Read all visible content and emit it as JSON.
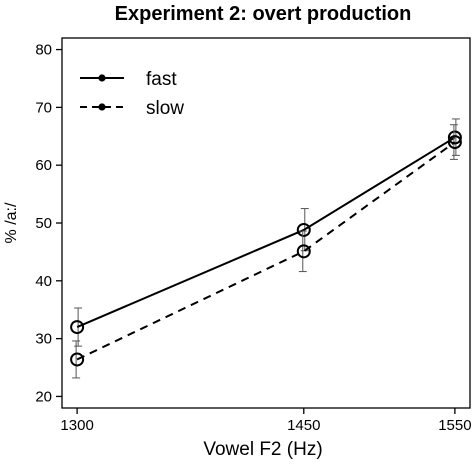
{
  "chart_data": {
    "type": "line",
    "title": "Experiment 2: overt production",
    "xlabel": "Vowel F2 (Hz)",
    "ylabel": "% /a:/",
    "x": [
      1300,
      1450,
      1550
    ],
    "x_ticks": [
      "1300",
      "1450",
      "1550"
    ],
    "xlim": [
      1290,
      1560
    ],
    "ylim": [
      18,
      82
    ],
    "y_ticks": [
      "20",
      "30",
      "40",
      "50",
      "60",
      "70",
      "80"
    ],
    "legend_position": "top-left",
    "grid": false,
    "series": [
      {
        "name": "fast",
        "line_style": "solid",
        "values": [
          32,
          48.8,
          64.8
        ],
        "error_low": [
          28.7,
          45.2,
          61.7
        ],
        "error_high": [
          35.3,
          52.5,
          68.0
        ]
      },
      {
        "name": "slow",
        "line_style": "dashed",
        "values": [
          26.4,
          45.1,
          64
        ],
        "error_low": [
          23.2,
          41.6,
          61.0
        ],
        "error_high": [
          29.6,
          48.6,
          67.0
        ]
      }
    ]
  }
}
